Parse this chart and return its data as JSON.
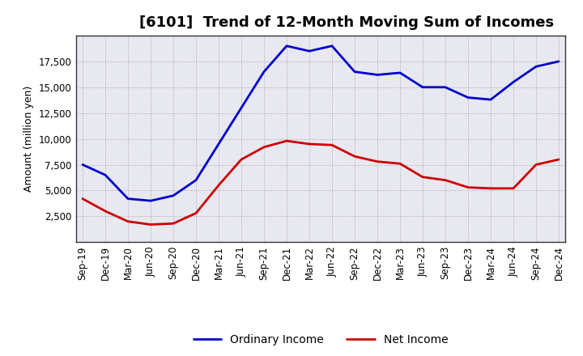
{
  "title": "[6101]  Trend of 12-Month Moving Sum of Incomes",
  "ylabel": "Amount (million yen)",
  "x_labels": [
    "Sep-19",
    "Dec-19",
    "Mar-20",
    "Jun-20",
    "Sep-20",
    "Dec-20",
    "Mar-21",
    "Jun-21",
    "Sep-21",
    "Dec-21",
    "Mar-22",
    "Jun-22",
    "Sep-22",
    "Dec-22",
    "Mar-23",
    "Jun-23",
    "Sep-23",
    "Dec-23",
    "Mar-24",
    "Jun-24",
    "Sep-24",
    "Dec-24"
  ],
  "ordinary_income": [
    7500,
    6500,
    4200,
    4000,
    4500,
    6000,
    9500,
    13000,
    16500,
    19000,
    18500,
    19000,
    16500,
    16200,
    16400,
    15000,
    15000,
    14000,
    13800,
    15500,
    17000,
    17500
  ],
  "net_income": [
    4200,
    3000,
    2000,
    1700,
    1800,
    2800,
    5500,
    8000,
    9200,
    9800,
    9500,
    9400,
    8300,
    7800,
    7600,
    6300,
    6000,
    5300,
    5200,
    5200,
    7500,
    8000
  ],
  "ordinary_color": "#0000cc",
  "net_color": "#cc0000",
  "ylim": [
    0,
    20000
  ],
  "yticks": [
    2500,
    5000,
    7500,
    10000,
    12500,
    15000,
    17500
  ],
  "background_color": "#ffffff",
  "plot_bg_color": "#e8e8f0",
  "grid_color": "#999999",
  "title_fontsize": 13,
  "axis_fontsize": 9,
  "tick_fontsize": 8.5,
  "legend_fontsize": 10,
  "line_width": 2.0
}
